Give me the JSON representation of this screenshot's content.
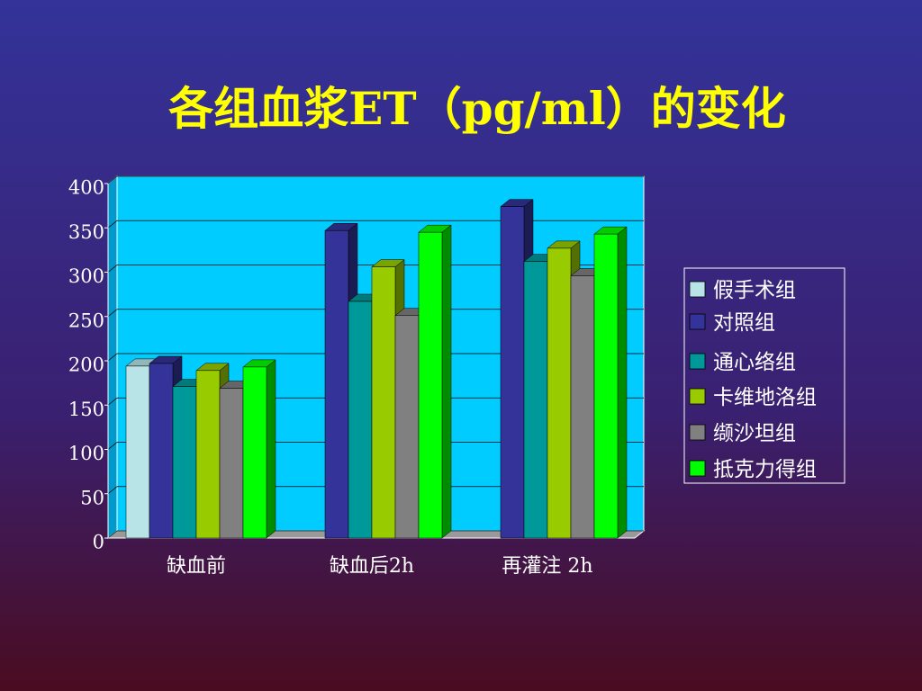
{
  "chart_data": {
    "type": "bar3d",
    "title": "各组血浆ET（pg/ml）的变化",
    "categories": [
      "缺血前",
      "缺血后2h",
      "再灌注 2h"
    ],
    "series": [
      {
        "name": "假手术组",
        "color": "#b8e4e8",
        "values": [
          194,
          null,
          null
        ]
      },
      {
        "name": "对照组",
        "color": "#333399",
        "values": [
          197,
          347,
          374
        ]
      },
      {
        "name": "通心络组",
        "color": "#009999",
        "values": [
          171,
          267,
          312
        ]
      },
      {
        "name": "卡维地洛组",
        "color": "#99cc00",
        "values": [
          189,
          306,
          327
        ]
      },
      {
        "name": "缬沙坦组",
        "color": "#808080",
        "values": [
          169,
          251,
          296
        ]
      },
      {
        "name": "抵克力得组",
        "color": "#00ff00",
        "values": [
          193,
          345,
          343
        ]
      }
    ],
    "ylim": [
      0,
      400
    ],
    "yticks": [
      0,
      50,
      100,
      150,
      200,
      250,
      300,
      350,
      400
    ],
    "grid": true
  }
}
